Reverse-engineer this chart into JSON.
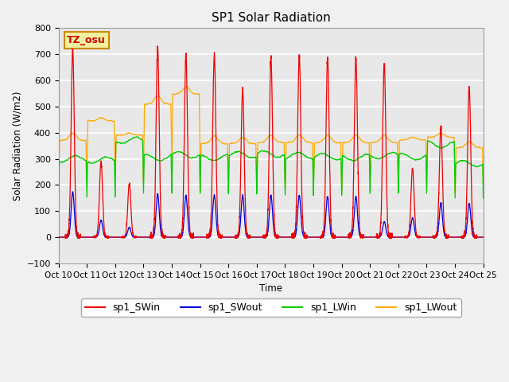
{
  "title": "SP1 Solar Radiation",
  "ylabel": "Solar Radiation (W/m2)",
  "xlabel": "Time",
  "ylim": [
    -100,
    800
  ],
  "series_colors": {
    "sp1_SWin": "#ee0000",
    "sp1_SWout": "#0000dd",
    "sp1_LWin": "#00cc00",
    "sp1_LWout": "#ffaa00"
  },
  "tz_label": "TZ_osu",
  "tz_text_color": "#cc0000",
  "tz_bg_color": "#f0f0a0",
  "tz_border_color": "#cc8800",
  "plot_bg_color": "#e8e8e8",
  "fig_bg_color": "#f0f0f0",
  "grid_color": "#ffffff",
  "n_days": 15,
  "start_day": 10,
  "dt_per_day": 288,
  "sw_in_peaks": [
    725,
    290,
    205,
    725,
    700,
    695,
    565,
    690,
    700,
    685,
    685,
    670,
    265,
    420,
    580
  ],
  "sw_out_peaks": [
    175,
    65,
    38,
    165,
    160,
    160,
    160,
    160,
    160,
    155,
    155,
    60,
    75,
    130,
    130
  ],
  "lw_in_base": [
    300,
    295,
    370,
    305,
    315,
    305,
    315,
    318,
    312,
    308,
    305,
    312,
    308,
    355,
    282
  ],
  "lw_out_base": [
    370,
    445,
    390,
    510,
    548,
    358,
    358,
    362,
    362,
    362,
    362,
    362,
    372,
    382,
    342
  ],
  "tick_labels": [
    "Oct 10",
    "Oct 11",
    "Oct 12",
    "Oct 13",
    "Oct 14",
    "Oct 15",
    "Oct 16",
    "Oct 17",
    "Oct 18",
    "Oct 19",
    "Oct 20",
    "Oct 21",
    "Oct 22",
    "Oct 23",
    "Oct 24",
    "Oct 25"
  ]
}
